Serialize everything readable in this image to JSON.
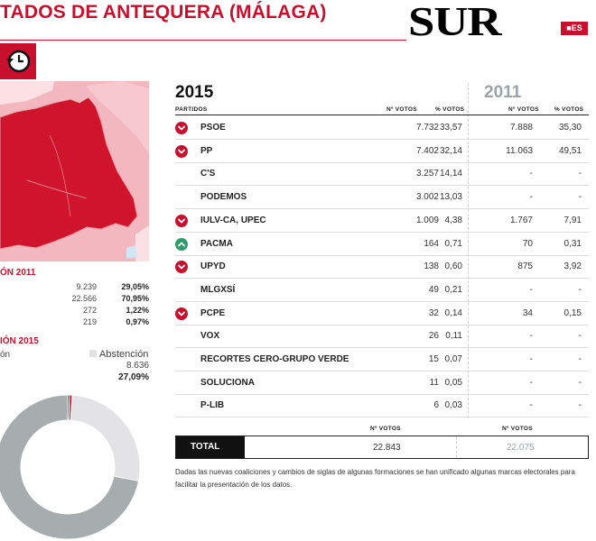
{
  "header": {
    "title": "TADOS DE ANTEQUERA (MÁLAGA)",
    "logo": "SUR",
    "logo_badge": "■ES",
    "clock_icon": "clock-icon"
  },
  "left": {
    "section_2011": "ÓN 2011",
    "stats_2011": [
      {
        "value": "9.239",
        "pct": "29,05%"
      },
      {
        "value": "22.566",
        "pct": "70,95%"
      },
      {
        "value": "272",
        "pct": "1,22%"
      },
      {
        "value": "219",
        "pct": "0,97%"
      }
    ],
    "section_2015": "IÓN 2015",
    "legend_participation": "ón",
    "legend_abstention": "Abstención",
    "abstention_value": "8.636",
    "abstention_pct": "27,09%",
    "colors": {
      "map_dark": "#d0142c",
      "map_light": "#f3b7bf",
      "donut_participation": "#a7acaf",
      "donut_abstention": "#e3e3e5"
    }
  },
  "chart_data": {
    "type": "table",
    "year_current": "2015",
    "year_previous": "2011",
    "columns": [
      "PARTIDOS",
      "Nº VOTOS",
      "% VOTOS",
      "Nº VOTOS",
      "% VOTOS"
    ],
    "rows": [
      {
        "party": "PSOE",
        "trend": "down",
        "votes_2015": "7.732",
        "pct_2015": "33,57",
        "votes_2011": "7.888",
        "pct_2011": "35,30"
      },
      {
        "party": "PP",
        "trend": "down",
        "votes_2015": "7.402",
        "pct_2015": "32,14",
        "votes_2011": "11.063",
        "pct_2011": "49,51"
      },
      {
        "party": "C'S",
        "trend": "",
        "votes_2015": "3.257",
        "pct_2015": "14,14",
        "votes_2011": "-",
        "pct_2011": "-"
      },
      {
        "party": "PODEMOS",
        "trend": "",
        "votes_2015": "3.002",
        "pct_2015": "13,03",
        "votes_2011": "-",
        "pct_2011": "-"
      },
      {
        "party": "IULV-CA, UPEC",
        "trend": "down",
        "votes_2015": "1.009",
        "pct_2015": "4,38",
        "votes_2011": "1.767",
        "pct_2011": "7,91"
      },
      {
        "party": "PACMA",
        "trend": "up",
        "votes_2015": "164",
        "pct_2015": "0,71",
        "votes_2011": "70",
        "pct_2011": "0,31"
      },
      {
        "party": "UPYD",
        "trend": "down",
        "votes_2015": "138",
        "pct_2015": "0,60",
        "votes_2011": "875",
        "pct_2011": "3,92"
      },
      {
        "party": "MLGXSÍ",
        "trend": "",
        "votes_2015": "49",
        "pct_2015": "0,21",
        "votes_2011": "-",
        "pct_2011": "-"
      },
      {
        "party": "PCPE",
        "trend": "down",
        "votes_2015": "32",
        "pct_2015": "0,14",
        "votes_2011": "34",
        "pct_2011": "0,15"
      },
      {
        "party": "VOX",
        "trend": "",
        "votes_2015": "26",
        "pct_2015": "0,11",
        "votes_2011": "-",
        "pct_2011": "-"
      },
      {
        "party": "RECORTES CERO-GRUPO VERDE",
        "trend": "",
        "votes_2015": "15",
        "pct_2015": "0,07",
        "votes_2011": "-",
        "pct_2011": "-"
      },
      {
        "party": "SOLUCIONA",
        "trend": "",
        "votes_2015": "11",
        "pct_2015": "0,05",
        "votes_2011": "-",
        "pct_2011": "-"
      },
      {
        "party": "P-LIB",
        "trend": "",
        "votes_2015": "6",
        "pct_2015": "0,03",
        "votes_2011": "-",
        "pct_2011": "-"
      }
    ],
    "total": {
      "label": "TOTAL",
      "votes_header": "Nº VOTOS",
      "votes_2015": "22.843",
      "votes_2011": "22.075"
    },
    "donut_2015": {
      "abstention_pct": 27.09,
      "blank_pct": 0.4,
      "null_pct": 0.6
    },
    "colors": {
      "down": "#c8102e",
      "up": "#2e9b6b"
    }
  },
  "note": "Dadas las nuevas coaliciones y cambios de siglas de algunas formaciones se han unificado algunas marcas electorales para facilitar la presentación de los datos."
}
